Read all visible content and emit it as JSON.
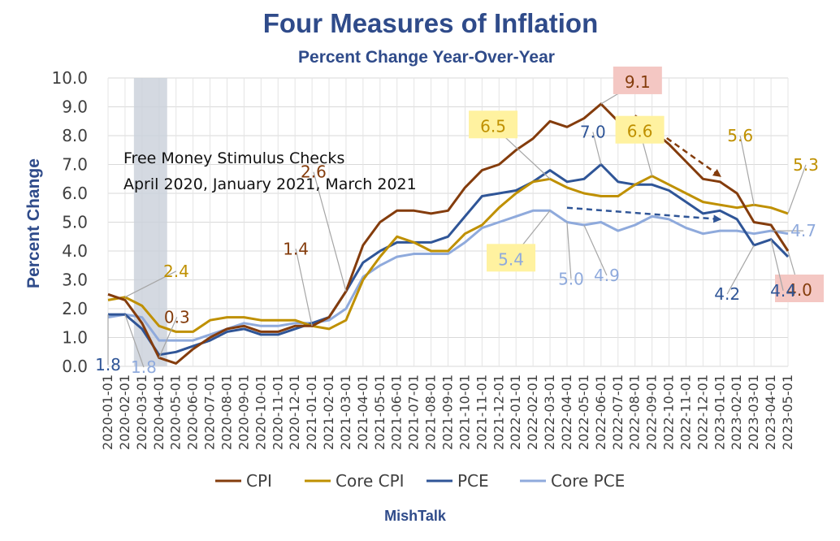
{
  "chart_data": {
    "type": "line",
    "title": "Four Measures of Inflation",
    "subtitle": "Percent Change Year-Over-Year",
    "ylabel": "Percent Change",
    "xlabel": "",
    "ylim": [
      0,
      10
    ],
    "yticks": [
      "0.0",
      "1.0",
      "2.0",
      "3.0",
      "4.0",
      "5.0",
      "6.0",
      "7.0",
      "8.0",
      "9.0",
      "10.0"
    ],
    "grid": true,
    "legend_position": "bottom",
    "x": [
      "2020-01-01",
      "2020-02-01",
      "2020-03-01",
      "2020-04-01",
      "2020-05-01",
      "2020-06-01",
      "2020-07-01",
      "2020-08-01",
      "2020-09-01",
      "2020-10-01",
      "2020-11-01",
      "2020-12-01",
      "2021-01-01",
      "2021-02-01",
      "2021-03-01",
      "2021-04-01",
      "2021-05-01",
      "2021-06-01",
      "2021-07-01",
      "2021-08-01",
      "2021-09-01",
      "2021-10-01",
      "2021-11-01",
      "2021-12-01",
      "2022-01-01",
      "2022-02-01",
      "2022-03-01",
      "2022-04-01",
      "2022-05-01",
      "2022-06-01",
      "2022-07-01",
      "2022-08-01",
      "2022-09-01",
      "2022-10-01",
      "2022-11-01",
      "2022-12-01",
      "2023-01-01",
      "2023-02-01",
      "2023-03-01",
      "2023-04-01",
      "2023-05-01"
    ],
    "series": [
      {
        "name": "CPI",
        "color": "#843C0C",
        "values": [
          2.5,
          2.3,
          1.5,
          0.3,
          0.1,
          0.6,
          1.0,
          1.3,
          1.4,
          1.2,
          1.2,
          1.4,
          1.4,
          1.7,
          2.6,
          4.2,
          5.0,
          5.4,
          5.4,
          5.3,
          5.4,
          6.2,
          6.8,
          7.0,
          7.5,
          7.9,
          8.5,
          8.3,
          8.6,
          9.1,
          8.5,
          8.3,
          8.2,
          7.7,
          7.1,
          6.5,
          6.4,
          6.0,
          5.0,
          4.9,
          4.0
        ]
      },
      {
        "name": "Core CPI",
        "color": "#BF9000",
        "values": [
          2.3,
          2.4,
          2.1,
          1.4,
          1.2,
          1.2,
          1.6,
          1.7,
          1.7,
          1.6,
          1.6,
          1.6,
          1.4,
          1.3,
          1.6,
          3.0,
          3.8,
          4.5,
          4.3,
          4.0,
          4.0,
          4.6,
          4.9,
          5.5,
          6.0,
          6.4,
          6.5,
          6.2,
          6.0,
          5.9,
          5.9,
          6.3,
          6.6,
          6.3,
          6.0,
          5.7,
          5.6,
          5.5,
          5.6,
          5.5,
          5.3
        ]
      },
      {
        "name": "PCE",
        "color": "#2F5597",
        "values": [
          1.8,
          1.8,
          1.3,
          0.4,
          0.5,
          0.7,
          0.9,
          1.2,
          1.3,
          1.1,
          1.1,
          1.3,
          1.5,
          1.7,
          2.6,
          3.6,
          4.0,
          4.3,
          4.3,
          4.3,
          4.5,
          5.2,
          5.9,
          6.0,
          6.1,
          6.4,
          6.8,
          6.4,
          6.5,
          7.0,
          6.4,
          6.3,
          6.3,
          6.1,
          5.7,
          5.3,
          5.4,
          5.1,
          4.2,
          4.4,
          3.8
        ]
      },
      {
        "name": "Core PCE",
        "color": "#8FAADC",
        "values": [
          1.7,
          1.8,
          1.7,
          0.9,
          0.9,
          0.9,
          1.1,
          1.3,
          1.5,
          1.4,
          1.4,
          1.5,
          1.5,
          1.6,
          2.0,
          3.1,
          3.5,
          3.8,
          3.9,
          3.9,
          3.9,
          4.3,
          4.8,
          5.0,
          5.2,
          5.4,
          5.4,
          5.0,
          4.9,
          5.0,
          4.7,
          4.9,
          5.2,
          5.1,
          4.8,
          4.6,
          4.7,
          4.7,
          4.6,
          4.7,
          4.6
        ]
      }
    ],
    "recession_shading": {
      "from": "2020-03-01",
      "to": "2020-04-01"
    },
    "annotations": [
      {
        "text": "9.1",
        "series": "CPI",
        "at": "2022-06-01",
        "value": 9.1,
        "highlight": "#F4C7C3",
        "color": "#843C0C"
      },
      {
        "text": "2.6",
        "series": "CPI",
        "at": "2021-03-01",
        "value": 2.6,
        "color": "#843C0C"
      },
      {
        "text": "1.4",
        "series": "CPI",
        "at": "2021-01-01",
        "value": 1.4,
        "color": "#843C0C"
      },
      {
        "text": "0.3",
        "series": "CPI",
        "at": "2020-04-01",
        "value": 0.3,
        "color": "#843C0C"
      },
      {
        "text": "5.6",
        "series": "Core CPI",
        "at": "2023-03-01",
        "value": 5.6,
        "color": "#BF9000"
      },
      {
        "text": "4.0",
        "series": "CPI",
        "at": "2023-05-01",
        "value": 4.0,
        "highlight": "#F4C7C3",
        "color": "#843C0C"
      },
      {
        "text": "6.5",
        "series": "Core CPI",
        "at": "2022-03-01",
        "value": 6.5,
        "highlight": "#FFF2A0",
        "color": "#BF9000"
      },
      {
        "text": "6.6",
        "series": "Core CPI",
        "at": "2022-09-01",
        "value": 6.6,
        "highlight": "#FFF2A0",
        "color": "#BF9000"
      },
      {
        "text": "2.4",
        "series": "Core CPI",
        "at": "2020-02-01",
        "value": 2.4,
        "color": "#BF9000"
      },
      {
        "text": "5.3",
        "series": "Core CPI",
        "at": "2023-05-01",
        "value": 5.3,
        "color": "#BF9000"
      },
      {
        "text": "7.0",
        "series": "PCE",
        "at": "2022-06-01",
        "value": 7.0,
        "color": "#2F5597"
      },
      {
        "text": "1.8",
        "series": "PCE",
        "at": "2020-01-01",
        "value": 1.8,
        "color": "#2F5597"
      },
      {
        "text": "4.2",
        "series": "PCE",
        "at": "2023-03-01",
        "value": 4.2,
        "color": "#2F5597"
      },
      {
        "text": "4.4",
        "series": "PCE",
        "at": "2023-04-01",
        "value": 4.4,
        "color": "#2F5597"
      },
      {
        "text": "5.4",
        "series": "Core PCE",
        "at": "2022-03-01",
        "value": 5.4,
        "highlight": "#FFF2A0",
        "color": "#8FAADC"
      },
      {
        "text": "5.0",
        "series": "Core PCE",
        "at": "2022-04-01",
        "value": 5.0,
        "color": "#8FAADC"
      },
      {
        "text": "4.9",
        "series": "Core PCE",
        "at": "2022-05-01",
        "value": 4.9,
        "color": "#8FAADC"
      },
      {
        "text": "1.8",
        "series": "Core PCE",
        "at": "2020-02-01",
        "value": 1.8,
        "color": "#8FAADC"
      },
      {
        "text": "4.7",
        "series": "Core PCE",
        "at": "2023-04-01",
        "value": 4.7,
        "color": "#8FAADC"
      }
    ],
    "note": [
      "Free Money Stimulus Checks",
      "April 2020, January 2021, March 2021"
    ],
    "trend_arrows": [
      {
        "color": "#843C0C",
        "from": {
          "x": "2022-08-01",
          "y": 8.7
        },
        "to": {
          "x": "2023-01-01",
          "y": 6.6
        }
      },
      {
        "color": "#2F5597",
        "from": {
          "x": "2022-04-01",
          "y": 5.5
        },
        "to": {
          "x": "2023-01-01",
          "y": 5.1
        }
      }
    ]
  },
  "footer": {
    "source": "MishTalk"
  }
}
